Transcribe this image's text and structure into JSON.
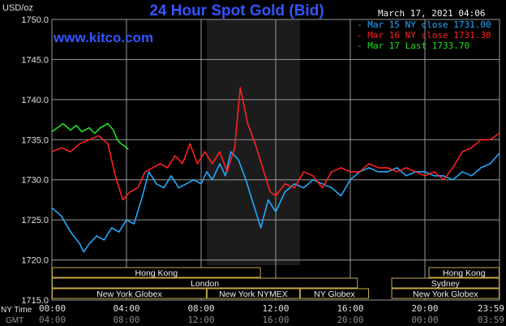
{
  "chart_data": {
    "type": "line",
    "title": "24 Hour Spot Gold (Bid)",
    "website": "www.kitco.com",
    "timestamp": "March 17, 2021 04:06",
    "ylabel": "USD/oz",
    "ylim": [
      1715,
      1750
    ],
    "y_ticks": [
      "1750.0",
      "1745.0",
      "1740.0",
      "1735.0",
      "1730.0",
      "1725.0",
      "1720.0",
      "1715.0"
    ],
    "xlim": [
      0,
      24
    ],
    "x_ticks_ny": [
      "00:00",
      "04:00",
      "08:00",
      "12:00",
      "16:00",
      "20:00",
      "23:59"
    ],
    "x_ticks_gmt": [
      "04:00",
      "08:00",
      "12:00",
      "16:00",
      "20:00",
      "00:00",
      "03:59"
    ],
    "x_label_ny": "NY Time",
    "x_label_gmt": "GMT",
    "grid": true,
    "colors": {
      "background": "#000000",
      "grid": "#9a9a9a",
      "title": "#3355ff",
      "website": "#3355ff",
      "nymex_shade": "#1c1c1c",
      "session_box": "#c8a84a",
      "session_text": "#f0f0f0"
    },
    "series": [
      {
        "name": "Mar 15 NY close 1731.00",
        "color": "#22aaff",
        "x": [
          0,
          0.5,
          1,
          1.5,
          1.7,
          2,
          2.4,
          2.8,
          3.2,
          3.6,
          4,
          4.4,
          4.8,
          5.2,
          5.6,
          6,
          6.4,
          6.8,
          7.2,
          7.6,
          8,
          8.3,
          8.6,
          9,
          9.3,
          9.6,
          10,
          10.4,
          10.8,
          11.2,
          11.6,
          12,
          12.5,
          13,
          13.5,
          14,
          14.5,
          15,
          15.5,
          16,
          16.5,
          17,
          17.5,
          18,
          18.5,
          19,
          19.5,
          20,
          20.5,
          21,
          21.5,
          22,
          22.5,
          23,
          23.5,
          23.99
        ],
        "y": [
          1726.5,
          1725.5,
          1723.5,
          1722.0,
          1721.0,
          1722.0,
          1723.0,
          1722.5,
          1724.0,
          1723.5,
          1725.0,
          1724.5,
          1727.5,
          1731.0,
          1729.5,
          1729.0,
          1730.5,
          1729.0,
          1729.5,
          1730.0,
          1729.5,
          1731.0,
          1730.0,
          1732.0,
          1730.5,
          1733.5,
          1732.5,
          1730.0,
          1727.0,
          1724.0,
          1727.5,
          1726.0,
          1728.5,
          1729.5,
          1729.0,
          1730.0,
          1729.5,
          1729.0,
          1728.0,
          1730.0,
          1731.0,
          1731.5,
          1731.0,
          1731.0,
          1731.5,
          1730.5,
          1731.0,
          1731.0,
          1730.5,
          1730.5,
          1730.0,
          1731.0,
          1730.5,
          1731.5,
          1732.0,
          1733.3
        ]
      },
      {
        "name": "Mar 16 NY close 1731.30",
        "color": "#ff2020",
        "x": [
          0,
          0.5,
          1,
          1.5,
          2,
          2.5,
          3,
          3.4,
          3.8,
          4.2,
          4.6,
          5,
          5.4,
          5.8,
          6.2,
          6.6,
          7,
          7.4,
          7.8,
          8.2,
          8.6,
          9,
          9.4,
          9.8,
          10.1,
          10.5,
          10.9,
          11.3,
          11.7,
          12,
          12.5,
          13,
          13.5,
          14,
          14.5,
          15,
          15.5,
          16,
          16.5,
          17,
          17.5,
          18,
          18.5,
          19,
          19.5,
          20,
          20.5,
          21,
          21.5,
          22,
          22.5,
          23,
          23.5,
          23.99
        ],
        "y": [
          1733.5,
          1734.0,
          1733.5,
          1734.5,
          1735.0,
          1735.5,
          1734.5,
          1730.5,
          1727.5,
          1728.5,
          1729.0,
          1731.0,
          1731.5,
          1732.0,
          1731.5,
          1733.0,
          1732.0,
          1734.5,
          1732.0,
          1733.5,
          1732.0,
          1733.5,
          1731.0,
          1734.0,
          1741.5,
          1737.0,
          1734.5,
          1731.5,
          1728.5,
          1728.0,
          1729.5,
          1729.0,
          1731.0,
          1730.5,
          1729.0,
          1731.0,
          1731.5,
          1731.0,
          1731.0,
          1732.0,
          1731.5,
          1731.5,
          1731.0,
          1731.5,
          1731.0,
          1730.5,
          1731.0,
          1730.0,
          1731.5,
          1733.5,
          1734.0,
          1735.0,
          1735.0,
          1735.8
        ]
      },
      {
        "name": "Mar 17 Last 1733.70",
        "color": "#22dd22",
        "x": [
          0,
          0.3,
          0.6,
          1,
          1.3,
          1.6,
          2,
          2.3,
          2.6,
          3,
          3.3,
          3.5,
          3.7,
          3.9,
          4.1
        ],
        "y": [
          1736.0,
          1736.5,
          1737.0,
          1736.2,
          1736.8,
          1736.0,
          1736.5,
          1735.8,
          1736.5,
          1737.0,
          1736.2,
          1735.0,
          1734.5,
          1734.2,
          1733.8
        ]
      }
    ],
    "sessions": [
      {
        "label": "Hong Kong",
        "row": 1,
        "start": 0,
        "end": 11.2
      },
      {
        "label": "Hong Kong",
        "row": 1,
        "start": 20.2,
        "end": 24
      },
      {
        "label": "London",
        "row": 2,
        "start": 0,
        "end": 16.4
      },
      {
        "label": "Sydney",
        "row": 2,
        "start": 18.2,
        "end": 24
      },
      {
        "label": "New York Globex",
        "row": 3,
        "start": 0,
        "end": 8.3
      },
      {
        "label": "New York NYMEX",
        "row": 3,
        "start": 8.3,
        "end": 13.3
      },
      {
        "label": "NY Globex",
        "row": 3,
        "start": 13.3,
        "end": 17.0
      },
      {
        "label": "New York Globex",
        "row": 3,
        "start": 18.2,
        "end": 24
      }
    ],
    "nymex_shade": [
      8.3,
      13.3
    ]
  }
}
